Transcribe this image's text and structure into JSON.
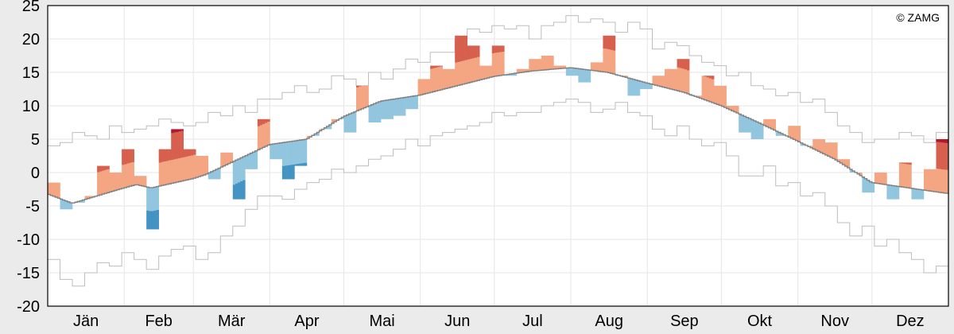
{
  "chart_data": {
    "type": "bar",
    "title": "",
    "xlabel": "",
    "ylabel": "",
    "ylim": [
      -20,
      25
    ],
    "yticks": [
      25,
      20,
      15,
      10,
      5,
      0,
      -5,
      -10,
      -15,
      -20
    ],
    "months": [
      "Jän",
      "Feb",
      "Mär",
      "Apr",
      "Mai",
      "Jun",
      "Jul",
      "Aug",
      "Sep",
      "Okt",
      "Nov",
      "Dez"
    ],
    "month_start_days": [
      0,
      31,
      59,
      90,
      120,
      151,
      181,
      212,
      243,
      273,
      304,
      334
    ],
    "days_in_year": 365,
    "grid": true,
    "copyright": "© ZAMG",
    "step_days": 5,
    "extreme_threshold": 3.5,
    "very_extreme_threshold": 7.5,
    "colors": {
      "warm": "#f4a582",
      "warm_extreme": "#d6604d",
      "warm_very": "#b2182b",
      "cold": "#92c5de",
      "cold_extreme": "#4393c3",
      "normal_line": "#808080",
      "range_line": "#bdbdbd",
      "grid": "#e6e6e6"
    },
    "normal": [
      [
        0,
        -3.2
      ],
      [
        10,
        -4.6
      ],
      [
        20,
        -3.5
      ],
      [
        31,
        -2.3
      ],
      [
        36,
        -1.8
      ],
      [
        42,
        -2.3
      ],
      [
        59,
        -0.9
      ],
      [
        64,
        -0.3
      ],
      [
        90,
        4.2
      ],
      [
        105,
        5
      ],
      [
        120,
        8.4
      ],
      [
        135,
        10.7
      ],
      [
        151,
        11.6
      ],
      [
        166,
        13
      ],
      [
        181,
        14.4
      ],
      [
        196,
        15.2
      ],
      [
        212,
        15.7
      ],
      [
        227,
        15
      ],
      [
        243,
        13.4
      ],
      [
        258,
        12
      ],
      [
        273,
        10
      ],
      [
        288,
        7.5
      ],
      [
        304,
        4.7
      ],
      [
        319,
        2
      ],
      [
        334,
        -1.5
      ],
      [
        364,
        -3.1
      ]
    ],
    "observed": [
      -1.5,
      -5.5,
      -4.5,
      -3.5,
      1,
      0,
      3.5,
      -0.5,
      -8.5,
      3.5,
      6.5,
      3.5,
      2.5,
      -1,
      3,
      -4,
      0.5,
      8,
      2,
      -1,
      1,
      5.5,
      6.5,
      8,
      6,
      13,
      7.5,
      8,
      8.5,
      9.5,
      14,
      16,
      15.5,
      20.5,
      19,
      16,
      19,
      14.5,
      15.5,
      17,
      17.5,
      16,
      14.5,
      13.5,
      16.5,
      20.5,
      14.5,
      11.5,
      12.5,
      14.5,
      15.5,
      17,
      11.5,
      14.5,
      13,
      10,
      6,
      5,
      8,
      5.5,
      7,
      4,
      5,
      4.5,
      2,
      0,
      -3,
      0,
      -4,
      1.5,
      -4,
      0.5,
      5
    ],
    "abs_max": [
      4,
      4.5,
      6,
      5.5,
      5,
      7,
      6,
      6.5,
      7,
      8,
      7.5,
      7,
      7.5,
      9,
      8.5,
      10,
      9,
      11,
      11,
      12,
      13,
      12,
      12.5,
      14.5,
      14,
      13,
      15,
      14,
      15.5,
      17,
      16.5,
      18,
      18,
      20,
      21.5,
      21,
      22,
      21.5,
      22,
      20,
      22,
      22.5,
      23.5,
      22.5,
      23,
      22.5,
      21,
      22.5,
      21.5,
      18.5,
      19.5,
      19,
      17.5,
      16.5,
      16,
      14.5,
      15,
      13,
      12.5,
      11.5,
      12,
      10.5,
      11,
      9,
      7,
      6,
      4.5,
      5,
      5,
      6,
      5.5,
      4.5,
      6
    ],
    "abs_min": [
      -13,
      -16,
      -17,
      -15,
      -13.5,
      -14,
      -12,
      -13,
      -14.5,
      -12.5,
      -11.5,
      -11,
      -13,
      -12,
      -9.5,
      -8,
      -5.5,
      -3.5,
      -3.5,
      -4,
      -2.5,
      -1.5,
      -1,
      0.5,
      0,
      1,
      2,
      2.5,
      3.5,
      5,
      4,
      5.5,
      6,
      6.5,
      7,
      7.5,
      9,
      8.5,
      9,
      9,
      10,
      10.5,
      11,
      10.5,
      9,
      9.5,
      10.5,
      9,
      8.5,
      6.5,
      5.5,
      7,
      5,
      4,
      4.5,
      2.5,
      -0.5,
      -0.5,
      1,
      -2,
      -1.5,
      -3.5,
      -3,
      -5,
      -7.5,
      -9.5,
      -8,
      -11,
      -10,
      -12,
      -13,
      -15,
      -14
    ]
  }
}
